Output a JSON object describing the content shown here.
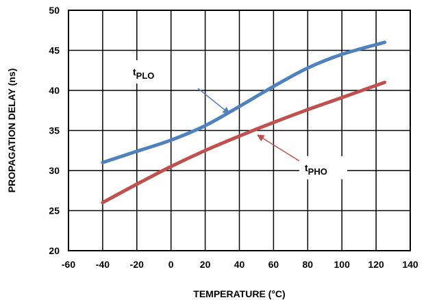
{
  "chart_data": {
    "type": "line",
    "xlabel": "TEMPERATURE (°C)",
    "ylabel": "PROPAGATION DELAY (ns)",
    "xlim": [
      -60,
      140
    ],
    "ylim": [
      20,
      50
    ],
    "x_ticks": [
      -60,
      -40,
      -20,
      0,
      20,
      40,
      60,
      80,
      100,
      120,
      140
    ],
    "y_ticks": [
      20,
      25,
      30,
      35,
      40,
      45,
      50
    ],
    "grid": true,
    "series": [
      {
        "name": "tPLO",
        "label_base": "t",
        "label_sub": "PLO",
        "color": "#4f81bd",
        "x": [
          -40,
          -20,
          0,
          20,
          40,
          60,
          80,
          100,
          125
        ],
        "y": [
          31,
          32.4,
          33.8,
          35.6,
          38,
          40.5,
          42.8,
          44.5,
          46
        ]
      },
      {
        "name": "tPHO",
        "label_base": "t",
        "label_sub": "PHO",
        "color": "#c0504d",
        "x": [
          -40,
          -20,
          0,
          20,
          40,
          60,
          80,
          100,
          125
        ],
        "y": [
          26,
          28.3,
          30.5,
          32.5,
          34.3,
          36,
          37.6,
          39.1,
          41
        ]
      }
    ]
  }
}
